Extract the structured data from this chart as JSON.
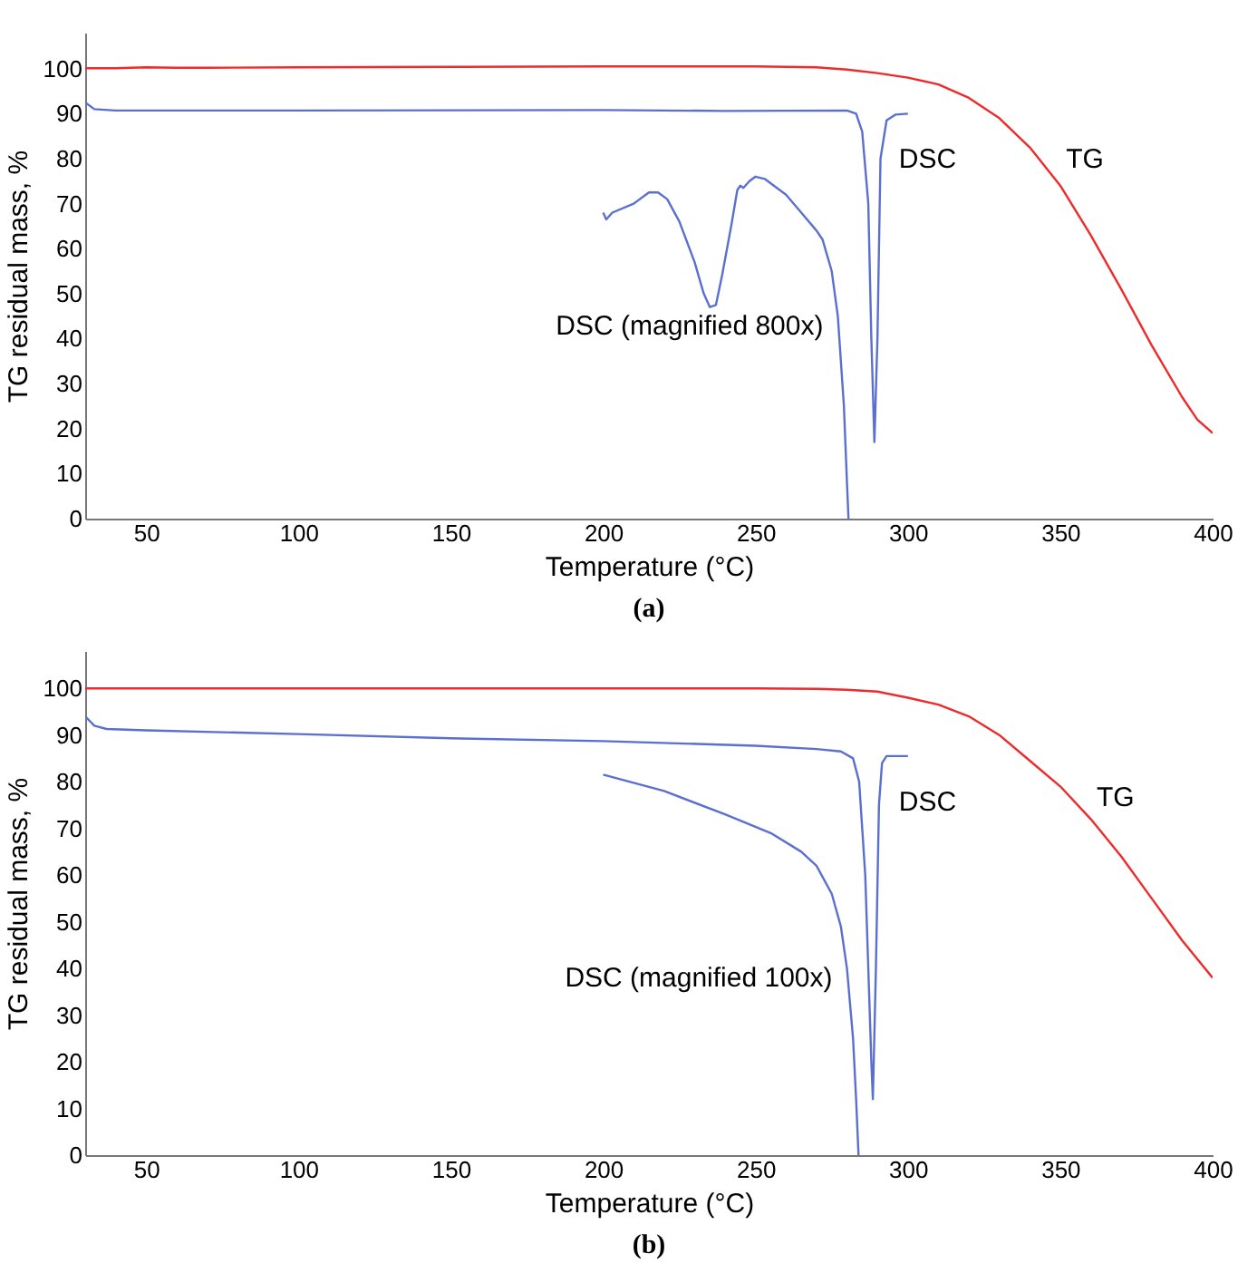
{
  "chart_data": [
    {
      "type": "line",
      "xlabel": "Temperature (°C)",
      "ylabel": "TG residual mass, %",
      "xlim": [
        30,
        400
      ],
      "xticks": [
        50,
        100,
        150,
        200,
        250,
        300,
        350,
        400
      ],
      "ylim": [
        0,
        108
      ],
      "yticks": [
        0,
        10,
        20,
        30,
        40,
        50,
        60,
        70,
        80,
        90,
        100
      ],
      "grid": false,
      "legend": false,
      "series": [
        {
          "name": "TG",
          "color": "#ee2a2a",
          "x": [
            30,
            40,
            50,
            60,
            70,
            100,
            150,
            200,
            250,
            270,
            280,
            290,
            300,
            310,
            320,
            330,
            340,
            350,
            360,
            370,
            380,
            390,
            395,
            400
          ],
          "values": [
            100.1,
            100.1,
            100.3,
            100.2,
            100.2,
            100.3,
            100.4,
            100.5,
            100.5,
            100.3,
            99.8,
            99,
            98,
            96.5,
            93.5,
            89,
            82.5,
            74,
            63,
            51,
            38.5,
            27,
            22,
            19
          ]
        },
        {
          "name": "DSC",
          "color": "#5a6fd0",
          "x": [
            30,
            33,
            40,
            100,
            200,
            240,
            280,
            283,
            285,
            287,
            288,
            289,
            290,
            291,
            293,
            296,
            300
          ],
          "values": [
            92.5,
            91,
            90.7,
            90.7,
            90.8,
            90.6,
            90.7,
            90,
            86,
            70,
            40,
            17,
            40,
            80,
            88.5,
            89.8,
            90
          ]
        },
        {
          "name": "DSC (magnified 800x)",
          "color": "#5a6fd0",
          "x": [
            200,
            201,
            203,
            210,
            215,
            218,
            221,
            225,
            230,
            233,
            235,
            237,
            239,
            242,
            244,
            245,
            246,
            248,
            250,
            253,
            260,
            265,
            270,
            272,
            275,
            277,
            279,
            280,
            280.5
          ],
          "values": [
            68,
            66.5,
            68,
            70,
            72.5,
            72.5,
            71,
            66,
            57,
            50,
            47,
            47.5,
            54,
            65,
            73,
            74,
            73.5,
            75,
            76,
            75.5,
            72,
            68,
            64,
            62,
            55,
            45,
            25,
            8,
            0
          ]
        }
      ],
      "title": "(a)"
    },
    {
      "type": "line",
      "xlabel": "Temperature (°C)",
      "ylabel": "TG residual mass, %",
      "xlim": [
        30,
        400
      ],
      "xticks": [
        50,
        100,
        150,
        200,
        250,
        300,
        350,
        400
      ],
      "ylim": [
        0,
        108
      ],
      "yticks": [
        0,
        10,
        20,
        30,
        40,
        50,
        60,
        70,
        80,
        90,
        100
      ],
      "grid": false,
      "legend": false,
      "series": [
        {
          "name": "TG",
          "color": "#ee2a2a",
          "x": [
            30,
            50,
            100,
            150,
            200,
            250,
            270,
            280,
            290,
            300,
            310,
            320,
            330,
            340,
            350,
            360,
            370,
            380,
            390,
            400
          ],
          "values": [
            100,
            100,
            100,
            100,
            100,
            100,
            99.9,
            99.7,
            99.3,
            98,
            96.5,
            94,
            90,
            84.5,
            79,
            72,
            64,
            55,
            46,
            38
          ]
        },
        {
          "name": "DSC",
          "color": "#5a6fd0",
          "x": [
            30,
            33,
            37,
            50,
            100,
            150,
            200,
            250,
            270,
            278,
            282,
            284,
            286,
            287,
            288,
            288.5,
            289.5,
            290.5,
            291.5,
            293,
            300
          ],
          "values": [
            94,
            92,
            91.3,
            91,
            90.2,
            89.3,
            88.7,
            87.7,
            87,
            86.5,
            85,
            80,
            60,
            40,
            20,
            12,
            40,
            75,
            84,
            85.5,
            85.5
          ]
        },
        {
          "name": "DSC (magnified 100x)",
          "color": "#5a6fd0",
          "x": [
            200,
            220,
            240,
            255,
            265,
            270,
            275,
            278,
            280,
            282,
            283,
            283.8
          ],
          "values": [
            81.5,
            78,
            73,
            69,
            65,
            62,
            56,
            49,
            40,
            25,
            12,
            0
          ]
        }
      ],
      "title": "(b)"
    }
  ]
}
